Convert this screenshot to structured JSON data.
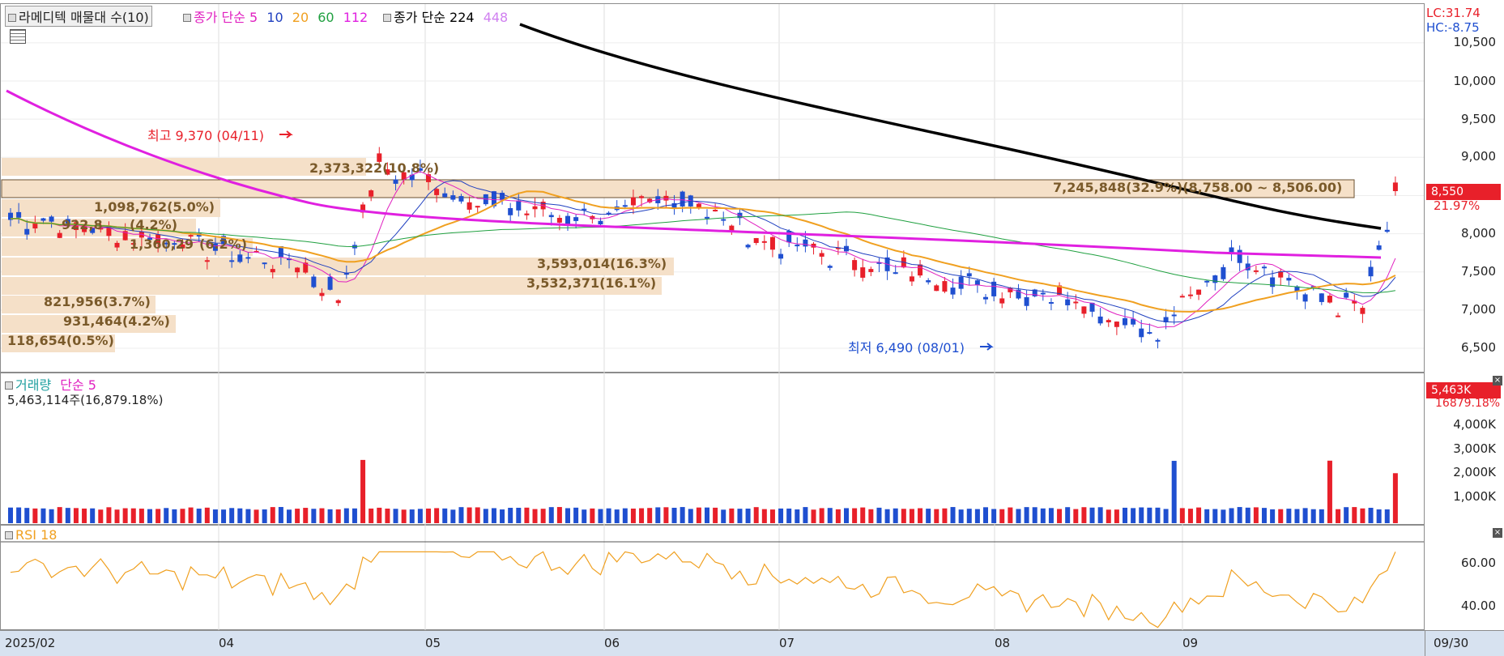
{
  "header": {
    "indicator_label": "라메디텍 매물대 수(10)",
    "ma_label": "종가 단순 5",
    "ma10": "10",
    "ma20": "20",
    "ma60": "60",
    "ma112": "112",
    "ma2_label": "종가 단순 224",
    "ma448": "448"
  },
  "right_info": {
    "lc": "LC:31.74",
    "hc": "HC:-8.75"
  },
  "price_axis": [
    "10,500",
    "10,000",
    "9,500",
    "9,000",
    "8,500",
    "8,000",
    "7,500",
    "7,000",
    "6,500"
  ],
  "price_tag": {
    "price": "8,550",
    "pct": "21.97%"
  },
  "annotations": {
    "high": "최고 9,370 (04/11)",
    "low": "최저 6,490 (08/01)",
    "vp1": "2,373,322(10.8%)",
    "vp2": "7,245,848(32.9%)(8,758.00 ~ 8,506.00)",
    "vp3": "1,098,762(5.0%)",
    "vp4": "922,8",
    "vp4b": "(4.2%)",
    "vp5": "1,360,29",
    "vp5b": "(6.2%)",
    "vp6": "3,593,014(16.3%)",
    "vp7": "3,532,371(16.1%)",
    "vp8": "821,956(3.7%)",
    "vp9": "931,464(4.2%)",
    "vp10": "118,654(0.5%)"
  },
  "volume": {
    "title_a": "거래량",
    "title_b": "단순 5",
    "readout": "5,463,114주(16,879.18%)",
    "axis": [
      "4,000K",
      "3,000K",
      "2,000K",
      "1,000K"
    ],
    "tag": "5,463K",
    "tag_pct": "16879.18%"
  },
  "rsi": {
    "title": "RSI 18",
    "axis": [
      "60.00",
      "40.00"
    ]
  },
  "x_axis": [
    "2025/02",
    "04",
    "05",
    "06",
    "07",
    "08",
    "09"
  ],
  "x_end": "09/30",
  "colors": {
    "up": "#e8202a",
    "down": "#1f4fd0",
    "ma5": "#e020c0",
    "ma10": "#2040c0",
    "ma20": "#f0a020",
    "ma60": "#20a040",
    "ma112": "#e020e0",
    "ma224": "#000000",
    "rsi": "#f0a020",
    "vp": "#f5e0c8"
  }
}
